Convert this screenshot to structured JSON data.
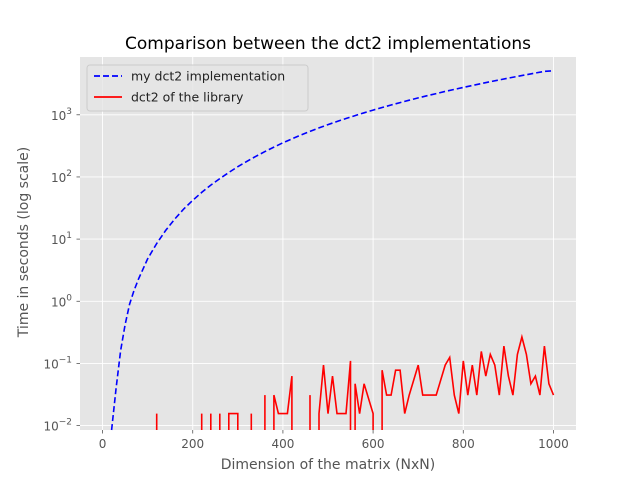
{
  "chart_data": {
    "type": "line",
    "title": "Comparison between the dct2 implementations",
    "xlabel": "Dimension of the matrix (NxN)",
    "ylabel": "Time in seconds (log scale)",
    "xlim": [
      -50,
      1050
    ],
    "ylim": [
      0.0085,
      8500
    ],
    "yscale": "log",
    "grid": true,
    "legend_position": "top-left",
    "x_ticks": [
      0,
      200,
      400,
      600,
      800,
      1000
    ],
    "x_tick_labels": [
      "0",
      "200",
      "400",
      "600",
      "800",
      "1000"
    ],
    "y_ticks": [
      0.01,
      0.1,
      1,
      10,
      100,
      1000
    ],
    "y_tick_labels": [
      {
        "base": "10",
        "exp": "−2"
      },
      {
        "base": "10",
        "exp": "−1"
      },
      {
        "base": "10",
        "exp": "0"
      },
      {
        "base": "10",
        "exp": "1"
      },
      {
        "base": "10",
        "exp": "2"
      },
      {
        "base": "10",
        "exp": "3"
      }
    ],
    "colors": {
      "plot_background": "#e5e5e5",
      "grid": "#ffffff",
      "series_1": "#0000ff",
      "series_2": "#ff0000"
    },
    "series": [
      {
        "name": "my dct2 implementation",
        "style": "dashed",
        "color": "#0000ff",
        "x": [
          20,
          30,
          40,
          50,
          60,
          70,
          80,
          100,
          120,
          140,
          160,
          180,
          200,
          220,
          240,
          260,
          280,
          300,
          320,
          340,
          360,
          380,
          400,
          420,
          440,
          460,
          480,
          500,
          520,
          540,
          560,
          580,
          600,
          620,
          640,
          660,
          680,
          700,
          720,
          740,
          760,
          780,
          800,
          820,
          840,
          860,
          880,
          900,
          920,
          940,
          960,
          980,
          1000
        ],
        "y": [
          0.0085,
          0.04,
          0.16,
          0.42,
          0.9,
          1.5,
          2.3,
          4.8,
          8.5,
          13.8,
          21,
          30.5,
          42,
          56.5,
          74,
          94,
          118,
          146,
          178,
          215,
          256,
          302,
          354,
          410,
          472,
          540,
          614,
          694,
          780,
          872,
          970,
          1076,
          1188,
          1308,
          1436,
          1571,
          1714,
          1866,
          2026,
          2195,
          2373,
          2560,
          2757,
          2963,
          3179,
          3405,
          3642,
          3888,
          4146,
          4414,
          4693,
          4983,
          5100
        ]
      },
      {
        "name": "dct2 of the library",
        "style": "solid",
        "color": "#ff0000",
        "segments": [
          {
            "x": [
              120,
              120
            ],
            "y": [
              0.0085,
              0.0156
            ]
          },
          {
            "x": [
              220,
              220
            ],
            "y": [
              0.0085,
              0.0156
            ]
          },
          {
            "x": [
              240,
              240
            ],
            "y": [
              0.0085,
              0.0156
            ]
          },
          {
            "x": [
              260,
              260
            ],
            "y": [
              0.0085,
              0.0156
            ]
          },
          {
            "x": [
              280,
              280,
              300,
              300
            ],
            "y": [
              0.0085,
              0.0156,
              0.0156,
              0.0085
            ]
          },
          {
            "x": [
              330,
              330
            ],
            "y": [
              0.0085,
              0.0156
            ]
          },
          {
            "x": [
              360,
              360
            ],
            "y": [
              0.0085,
              0.031
            ]
          },
          {
            "x": [
              380,
              380,
              390,
              410,
              420,
              420
            ],
            "y": [
              0.0085,
              0.031,
              0.0156,
              0.0156,
              0.0625,
              0.0085
            ]
          },
          {
            "x": [
              460,
              460
            ],
            "y": [
              0.0085,
              0.031
            ]
          },
          {
            "x": [
              480,
              480,
              490,
              500,
              510,
              520,
              540,
              550,
              550
            ],
            "y": [
              0.0085,
              0.0156,
              0.094,
              0.0156,
              0.0625,
              0.0156,
              0.0156,
              0.11,
              0.0085
            ]
          },
          {
            "x": [
              560,
              560,
              570,
              580,
              600,
              600
            ],
            "y": [
              0.0085,
              0.047,
              0.0156,
              0.047,
              0.0156,
              0.0085
            ]
          },
          {
            "x": [
              620,
              620,
              630,
              640,
              650,
              660,
              670,
              680,
              700,
              710,
              720,
              740,
              760,
              770,
              780,
              790,
              800,
              810,
              820,
              830,
              840,
              850,
              860,
              870,
              880,
              890,
              900,
              910,
              920,
              930,
              940,
              950,
              960,
              970,
              980,
              990,
              1000
            ],
            "y": [
              0.0085,
              0.078,
              0.031,
              0.031,
              0.078,
              0.078,
              0.0156,
              0.031,
              0.094,
              0.031,
              0.031,
              0.031,
              0.094,
              0.125,
              0.031,
              0.0156,
              0.11,
              0.031,
              0.094,
              0.031,
              0.156,
              0.0625,
              0.14,
              0.094,
              0.031,
              0.19,
              0.0625,
              0.031,
              0.14,
              0.266,
              0.14,
              0.047,
              0.0625,
              0.031,
              0.19,
              0.047,
              0.031
            ]
          }
        ]
      }
    ]
  }
}
